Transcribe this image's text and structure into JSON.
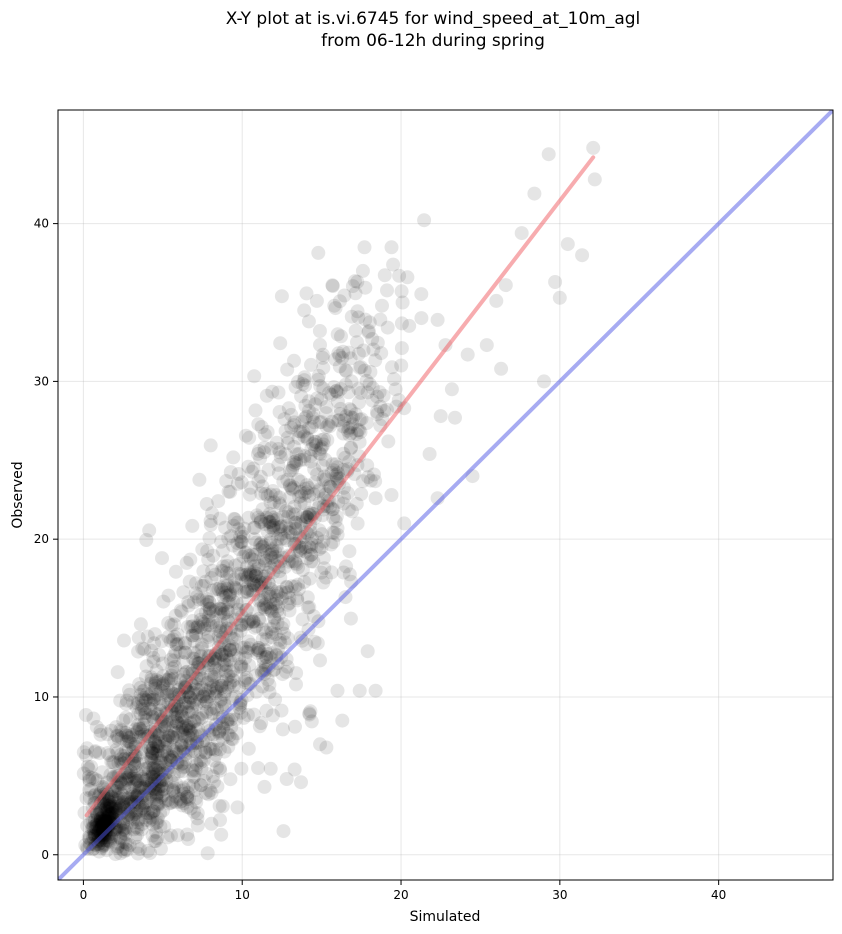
{
  "chart_data": {
    "type": "scatter",
    "title": [
      "X-Y plot at is.vi.6745 for wind_speed_at_10m_agl",
      "from 06-12h during spring"
    ],
    "xlabel": "Simulated",
    "ylabel": "Observed",
    "xlim": [
      -1.6,
      47.2
    ],
    "ylim": [
      -1.6,
      47.2
    ],
    "xticks": [
      0,
      10,
      20,
      30,
      40
    ],
    "yticks": [
      0,
      10,
      20,
      30,
      40
    ],
    "grid": true,
    "point_color": "#000000",
    "point_alpha": 0.1,
    "series": [
      {
        "type": "scatter",
        "points_estimated": [
          [
            12.6,
            1.5
          ],
          [
            24.5,
            24.0
          ],
          [
            29.3,
            44.4
          ],
          [
            32.1,
            44.8
          ],
          [
            32.2,
            42.8
          ],
          [
            28.4,
            41.9
          ],
          [
            27.6,
            39.4
          ],
          [
            29.0,
            30.0
          ],
          [
            30.0,
            35.3
          ],
          [
            30.5,
            38.7
          ],
          [
            31.4,
            38.0
          ],
          [
            29.7,
            36.3
          ],
          [
            26.6,
            36.1
          ],
          [
            26.0,
            35.1
          ],
          [
            26.3,
            30.8
          ],
          [
            25.4,
            32.3
          ],
          [
            24.2,
            31.7
          ],
          [
            23.2,
            29.5
          ],
          [
            23.4,
            27.7
          ],
          [
            22.5,
            27.8
          ],
          [
            22.3,
            22.6
          ],
          [
            21.8,
            25.4
          ],
          [
            22.3,
            33.9
          ],
          [
            22.8,
            32.3
          ],
          [
            17.7,
            38.5
          ],
          [
            19.4,
            38.5
          ],
          [
            19.5,
            37.4
          ],
          [
            17.6,
            37.0
          ],
          [
            20.4,
            36.6
          ],
          [
            20.1,
            35.0
          ],
          [
            12.5,
            35.4
          ],
          [
            13.9,
            34.5
          ],
          [
            14.2,
            33.8
          ],
          [
            15.8,
            34.8
          ],
          [
            18.8,
            34.8
          ],
          [
            16.9,
            34.1
          ],
          [
            18.7,
            28.4
          ],
          [
            19.7,
            28.4
          ],
          [
            20.2,
            28.3
          ],
          [
            19.2,
            26.2
          ],
          [
            18.3,
            24.1
          ],
          [
            19.4,
            22.8
          ],
          [
            18.4,
            22.6
          ],
          [
            20.2,
            21.0
          ],
          [
            17.9,
            12.9
          ],
          [
            18.4,
            10.4
          ],
          [
            17.4,
            10.4
          ],
          [
            16.0,
            10.4
          ],
          [
            15.3,
            6.8
          ],
          [
            14.9,
            7.0
          ],
          [
            16.3,
            8.5
          ],
          [
            13.3,
            5.4
          ],
          [
            12.8,
            4.8
          ],
          [
            13.7,
            4.6
          ],
          [
            11.4,
            4.3
          ],
          [
            11.0,
            5.5
          ],
          [
            9.7,
            3.0
          ],
          [
            8.6,
            2.2
          ],
          [
            6.6,
            1.0
          ],
          [
            5.3,
            1.1
          ]
        ],
        "cloud": [
          {
            "x": 3.0,
            "y": 4.0,
            "sx": 2.3,
            "sy": 2.8,
            "n": 560
          },
          {
            "x": 7.0,
            "y": 10.0,
            "sx": 2.6,
            "sy": 3.8,
            "n": 560
          },
          {
            "x": 11.0,
            "y": 17.0,
            "sx": 2.6,
            "sy": 4.4,
            "n": 440
          },
          {
            "x": 14.5,
            "y": 24.0,
            "sx": 2.2,
            "sy": 4.2,
            "n": 260
          },
          {
            "x": 17.0,
            "y": 29.0,
            "sx": 2.0,
            "sy": 3.5,
            "n": 110
          },
          {
            "x": 1.3,
            "y": 2.0,
            "sx": 0.5,
            "sy": 0.8,
            "n": 190
          }
        ]
      },
      {
        "type": "fit_line",
        "color": "#f05a5f",
        "x": [
          0.2,
          32.1
        ],
        "y": [
          2.5,
          44.2
        ]
      },
      {
        "type": "identity_line",
        "color": "#5057e6",
        "x": [
          -1.6,
          47.2
        ],
        "y": [
          -1.6,
          47.2
        ]
      }
    ]
  }
}
